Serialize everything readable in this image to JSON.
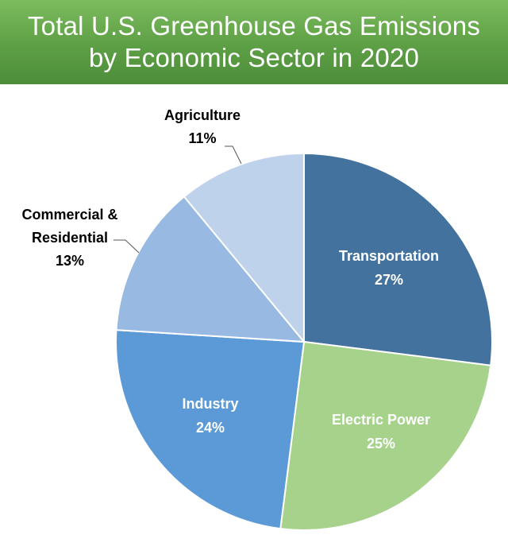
{
  "header": {
    "title_line1": "Total U.S. Greenhouse Gas Emissions",
    "title_line2": "by Economic Sector in 2020"
  },
  "chart_data": {
    "type": "pie",
    "title": "Total U.S. Greenhouse Gas Emissions by Economic Sector in 2020",
    "slices": [
      {
        "name": "Transportation",
        "value": 27,
        "label": "27%",
        "color": "#44729f"
      },
      {
        "name": "Electric Power",
        "value": 25,
        "label": "25%",
        "color": "#a6d28c"
      },
      {
        "name": "Industry",
        "value": 24,
        "label": "24%",
        "color": "#5b9ad6"
      },
      {
        "name": "Commercial & Residential",
        "name_lines": [
          "Commercial &",
          "Residential"
        ],
        "value": 13,
        "label": "13%",
        "color": "#98b9e2"
      },
      {
        "name": "Agriculture",
        "value": 11,
        "label": "11%",
        "color": "#bed2ec"
      }
    ],
    "legend": "none"
  }
}
